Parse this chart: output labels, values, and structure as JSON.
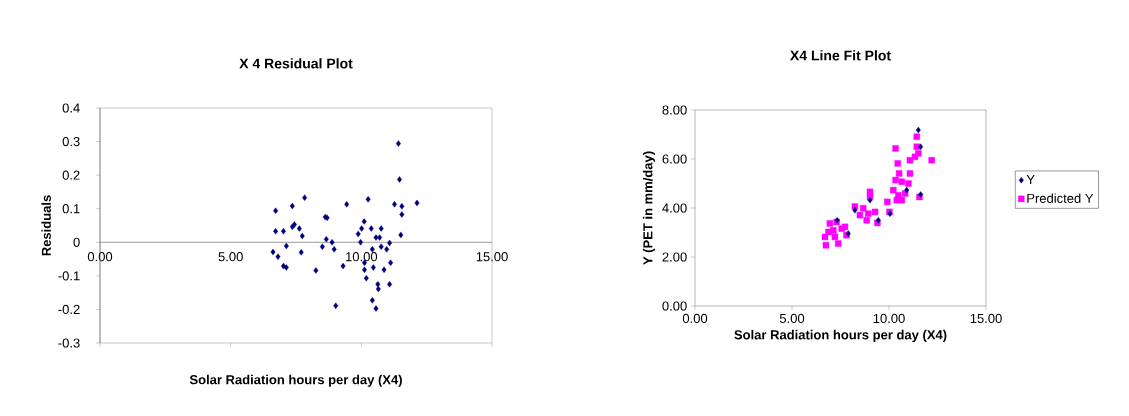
{
  "chart_data": [
    {
      "type": "scatter",
      "title": "X 4 Residual Plot",
      "xlabel": "Solar Radiation hours per day (X4)",
      "ylabel": "Residuals",
      "xlim": [
        0,
        15
      ],
      "ylim": [
        -0.3,
        0.4
      ],
      "xticks": [
        {
          "value": 0,
          "label": "0.00"
        },
        {
          "value": 5,
          "label": "5.00"
        },
        {
          "value": 10,
          "label": "10.00"
        },
        {
          "value": 15,
          "label": "15.00"
        }
      ],
      "yticks": [
        -0.3,
        -0.2,
        -0.1,
        0,
        0.1,
        0.2,
        0.3,
        0.4
      ],
      "grid": false,
      "legend": false,
      "marker": "diamond",
      "series": [
        {
          "color": "#000080",
          "x": [
            6.72,
            6.72,
            6.62,
            6.81,
            7.02,
            7.02,
            7.13,
            7.13,
            7.36,
            7.36,
            7.44,
            7.63,
            7.74,
            7.7,
            7.83,
            8.26,
            8.51,
            8.62,
            8.69,
            8.66,
            8.88,
            8.96,
            9.02,
            9.3,
            9.44,
            9.88,
            9.97,
            10.01,
            10.11,
            10.26,
            10.12,
            10.12,
            10.19,
            10.38,
            10.42,
            10.42,
            10.46,
            10.56,
            10.56,
            10.63,
            10.65,
            10.7,
            10.76,
            10.76,
            10.87,
            10.97,
            11.08,
            11.08,
            11.12,
            11.27,
            11.42,
            11.46,
            11.55,
            11.55,
            11.51,
            12.13
          ],
          "values": [
            0.094,
            0.033,
            -0.029,
            -0.043,
            0.033,
            -0.071,
            -0.075,
            -0.011,
            0.108,
            0.046,
            0.053,
            0.041,
            0.019,
            -0.03,
            0.133,
            -0.084,
            -0.013,
            0.075,
            0.073,
            0.009,
            0.0,
            -0.021,
            -0.189,
            -0.071,
            0.113,
            0.025,
            0.0,
            0.041,
            0.062,
            0.128,
            -0.061,
            -0.082,
            -0.107,
            0.041,
            -0.021,
            -0.173,
            -0.075,
            -0.197,
            0.014,
            -0.125,
            -0.139,
            0.014,
            0.041,
            -0.013,
            -0.082,
            -0.021,
            -0.002,
            -0.125,
            -0.061,
            0.113,
            0.294,
            0.187,
            0.107,
            0.083,
            0.022,
            0.117
          ]
        }
      ]
    },
    {
      "type": "scatter",
      "title": "X4 Line Fit Plot",
      "xlabel": "Solar Radiation hours per day (X4)",
      "ylabel": "Y (PET in mm/day)",
      "xlim": [
        0,
        15
      ],
      "ylim": [
        0,
        8
      ],
      "xticks": [
        {
          "value": 0,
          "label": "0.00"
        },
        {
          "value": 5,
          "label": "5.00"
        },
        {
          "value": 10,
          "label": "10.00"
        },
        {
          "value": 15,
          "label": "15.00"
        }
      ],
      "yticks": [
        {
          "value": 0,
          "label": "0.00"
        },
        {
          "value": 2,
          "label": "2.00"
        },
        {
          "value": 4,
          "label": "4.00"
        },
        {
          "value": 6,
          "label": "6.00"
        },
        {
          "value": 8,
          "label": "8.00"
        }
      ],
      "grid": false,
      "legend": "right",
      "series": [
        {
          "name": "Y",
          "color": "#000080",
          "marker": "diamond",
          "x": [
            11.51,
            9.02,
            11.63,
            10.05,
            9.45,
            7.33,
            7.9,
            11.63,
            10.91,
            8.24
          ],
          "values": [
            7.18,
            4.32,
            4.55,
            3.77,
            3.5,
            3.5,
            2.96,
            6.5,
            4.73,
            3.91
          ]
        },
        {
          "name": "Predicted Y",
          "color": "#ff00ff",
          "marker": "square",
          "x": [
            12.2,
            11.57,
            10.34,
            11.43,
            11.43,
            11.34,
            11.51,
            11.08,
            11.08,
            11.0,
            10.45,
            10.52,
            10.34,
            10.66,
            10.83,
            10.66,
            10.22,
            10.05,
            9.91,
            10.02,
            10.4,
            10.48,
            9.02,
            9.02,
            8.24,
            8.67,
            8.5,
            8.85,
            9.28,
            9.4,
            8.93,
            6.7,
            6.75,
            6.95,
            7.13,
            7.3,
            7.38,
            7.56,
            7.81,
            7.73,
            6.88,
            7.21
          ],
          "values": [
            5.95,
            4.45,
            6.43,
            6.91,
            6.5,
            6.09,
            6.23,
            5.95,
            5.41,
            5.0,
            5.82,
            5.41,
            5.14,
            5.07,
            4.59,
            4.32,
            4.73,
            null,
            4.25,
            3.84,
            4.32,
            4.52,
            4.66,
            4.46,
            4.06,
            3.99,
            3.71,
            3.5,
            3.84,
            3.39,
            3.77,
            2.82,
            2.48,
            3.37,
            3.09,
            3.43,
            2.55,
            3.16,
            2.89,
            3.23,
            3.02,
            2.82
          ]
        }
      ]
    }
  ]
}
